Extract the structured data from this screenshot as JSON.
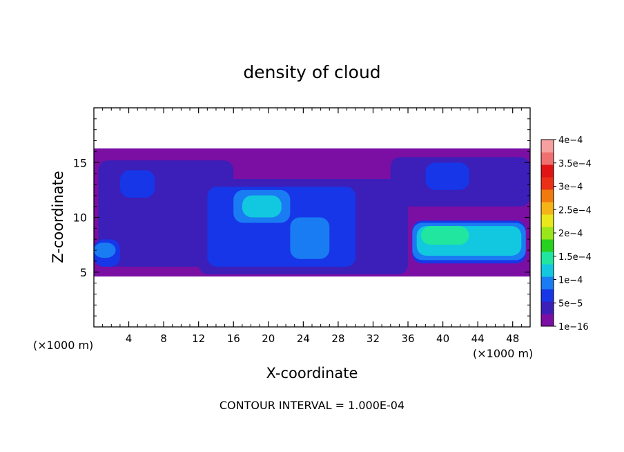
{
  "chart_data": {
    "type": "heatmap",
    "title": "density of cloud",
    "xlabel": "X-coordinate",
    "ylabel": "Z-coordinate",
    "x_unit_left": "(×1000 m)",
    "x_unit_right": "(×1000 m)",
    "footer": "CONTOUR INTERVAL = 1.000E-04",
    "xlim": [
      0,
      50
    ],
    "ylim": [
      0,
      20
    ],
    "x_ticks": [
      4,
      8,
      12,
      16,
      20,
      24,
      28,
      32,
      36,
      40,
      44,
      48
    ],
    "x_tick_labels": [
      "4",
      "8",
      "12",
      "16",
      "20",
      "24",
      "28",
      "32",
      "36",
      "40",
      "44",
      "48"
    ],
    "y_ticks": [
      5,
      10,
      15
    ],
    "y_tick_labels": [
      "5",
      "10",
      "15"
    ],
    "colorbar": {
      "labels": [
        "1e−16",
        "5e−5",
        "1e−4",
        "1.5e−4",
        "2e−4",
        "2.5e−4",
        "3e−4",
        "3.5e−4",
        "4e−4"
      ],
      "bands": [
        "#7b0fa3",
        "#3b1fb8",
        "#1636e8",
        "#1a7cf2",
        "#12c8e0",
        "#20e6a0",
        "#26d11f",
        "#9be61a",
        "#e8e81c",
        "#f5b318",
        "#f07a0e",
        "#ea3016",
        "#e01414",
        "#f07070",
        "#f7a0a0"
      ]
    },
    "regions": [
      {
        "level": 0,
        "x0": 0,
        "x1": 50,
        "z0": 4.6,
        "z1": 16.3
      },
      {
        "level": 1,
        "x0": 0.5,
        "x1": 16,
        "z0": 5.5,
        "z1": 15.2
      },
      {
        "level": 1,
        "x0": 34,
        "x1": 50,
        "z0": 11,
        "z1": 15.5
      },
      {
        "level": 1,
        "x0": 12,
        "x1": 36,
        "z0": 4.8,
        "z1": 13.5
      },
      {
        "level": 2,
        "x0": 3,
        "x1": 7,
        "z0": 11.8,
        "z1": 14.3
      },
      {
        "level": 2,
        "x0": 13,
        "x1": 30,
        "z0": 5.5,
        "z1": 12.8
      },
      {
        "level": 2,
        "x0": 36.5,
        "x1": 49.5,
        "z0": 5.8,
        "z1": 9.7
      },
      {
        "level": 2,
        "x0": 38,
        "x1": 43,
        "z0": 12.5,
        "z1": 15
      },
      {
        "level": 2,
        "x0": 0,
        "x1": 3,
        "z0": 5.5,
        "z1": 8
      },
      {
        "level": 3,
        "x0": 16,
        "x1": 22.5,
        "z0": 9.5,
        "z1": 12.5
      },
      {
        "level": 3,
        "x0": 36.5,
        "x1": 49.5,
        "z0": 6.1,
        "z1": 9.5
      },
      {
        "level": 3,
        "x0": 22.5,
        "x1": 27,
        "z0": 6.2,
        "z1": 10
      },
      {
        "level": 3,
        "x0": 0,
        "x1": 2.5,
        "z0": 6.3,
        "z1": 7.7
      },
      {
        "level": 4,
        "x0": 17,
        "x1": 21.5,
        "z0": 10,
        "z1": 12
      },
      {
        "level": 4,
        "x0": 37,
        "x1": 49,
        "z0": 6.5,
        "z1": 9.2
      },
      {
        "level": 5,
        "x0": 37.5,
        "x1": 43,
        "z0": 7.5,
        "z1": 9.2
      }
    ]
  }
}
